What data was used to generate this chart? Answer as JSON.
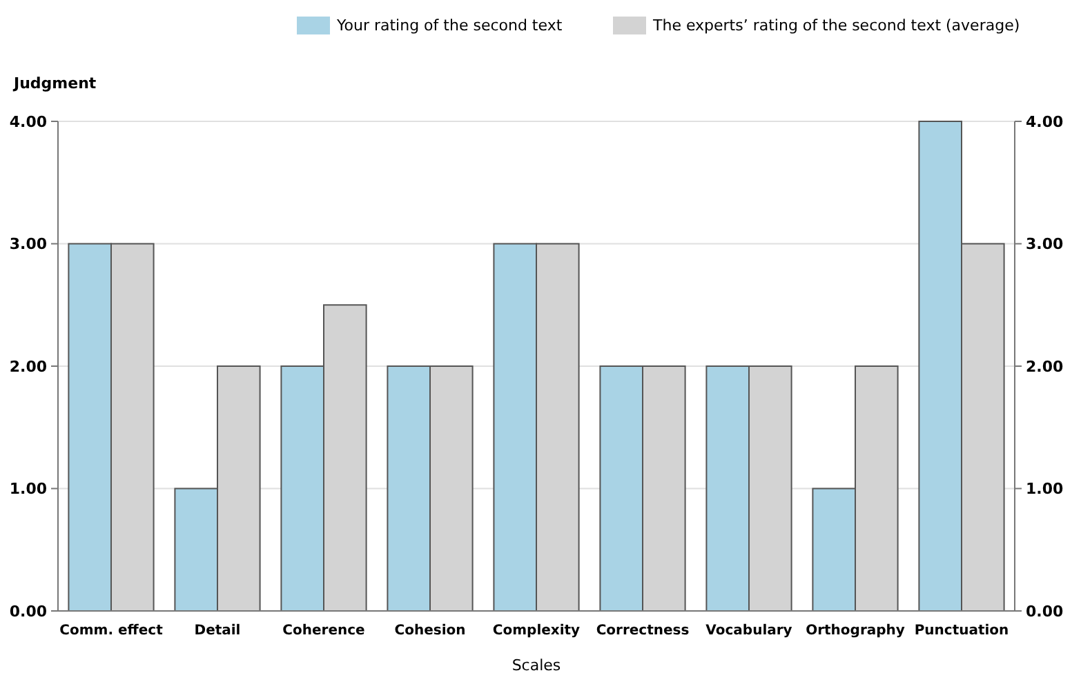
{
  "chart_data": {
    "type": "bar",
    "ylabel": "Judgment",
    "xlabel": "Scales",
    "categories": [
      "Comm. effect",
      "Detail",
      "Coherence",
      "Cohesion",
      "Complexity",
      "Correctness",
      "Vocabulary",
      "Orthography",
      "Punctuation"
    ],
    "series": [
      {
        "name": "Your rating of the second text",
        "color": "#a9d3e5",
        "values": [
          3,
          1,
          2,
          2,
          3,
          2,
          2,
          1,
          4
        ]
      },
      {
        "name": "The experts’ rating of the second text (average)",
        "color": "#d3d3d3",
        "values": [
          3,
          2,
          2.5,
          2,
          3,
          2,
          2,
          2,
          3
        ]
      }
    ],
    "ylim": [
      0,
      4
    ],
    "yticks": [
      {
        "value": 0,
        "label": "0.00"
      },
      {
        "value": 1,
        "label": "1.00"
      },
      {
        "value": 2,
        "label": "2.00"
      },
      {
        "value": 3,
        "label": "3.00"
      },
      {
        "value": 4,
        "label": "4.00"
      }
    ],
    "y2lim": [
      0,
      4
    ],
    "y2ticks": [
      {
        "value": 0,
        "label": "0.00"
      },
      {
        "value": 1,
        "label": "1.00"
      },
      {
        "value": 2,
        "label": "2.00"
      },
      {
        "value": 3,
        "label": "3.00"
      },
      {
        "value": 4,
        "label": "4.00"
      }
    ],
    "grid": "y",
    "legend": "top"
  }
}
